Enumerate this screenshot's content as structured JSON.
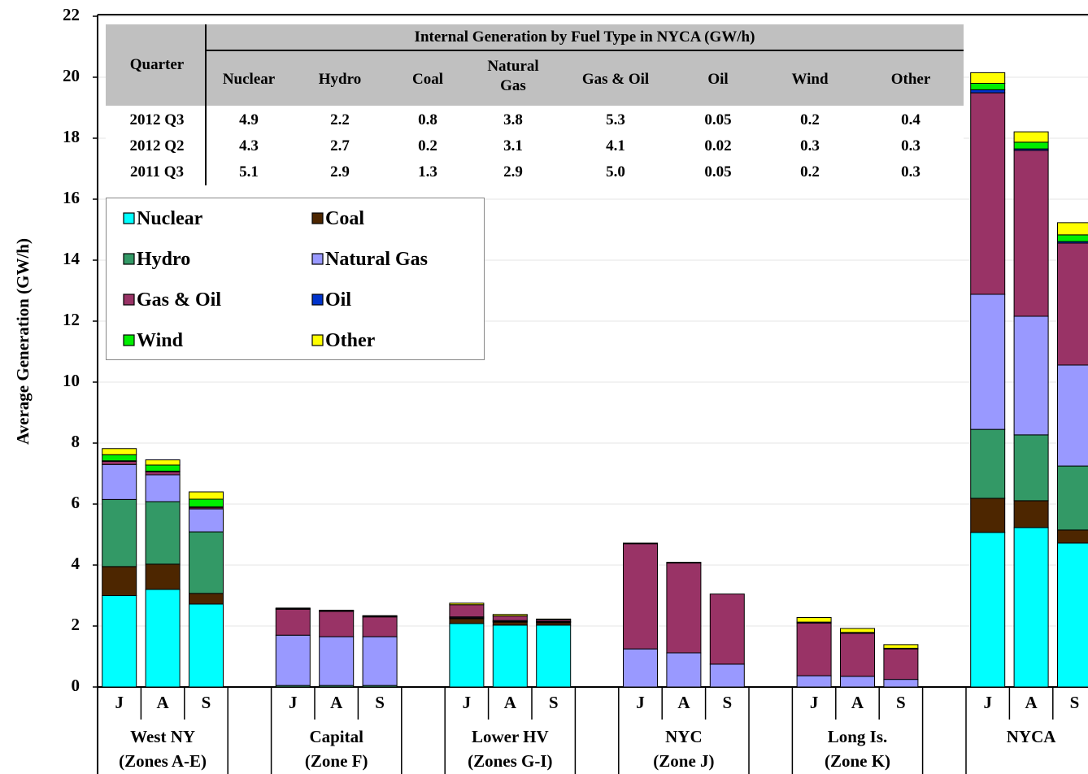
{
  "chart_data": {
    "type": "bar",
    "stacked": true,
    "y_label": "Average Generation (GW/h)",
    "ylim": [
      0,
      22
    ],
    "yticks": [
      0,
      2,
      4,
      6,
      8,
      10,
      12,
      14,
      16,
      18,
      20,
      22
    ],
    "grid": true,
    "categories": [
      "J",
      "A",
      "S",
      "J",
      "A",
      "S",
      "J",
      "A",
      "S",
      "J",
      "A",
      "S",
      "J",
      "A",
      "S",
      "J",
      "A",
      "S"
    ],
    "groups": [
      {
        "name": "West NY",
        "subtitle": "(Zones A-E)"
      },
      {
        "name": "Capital",
        "subtitle": "(Zone F)"
      },
      {
        "name": "Lower HV",
        "subtitle": "(Zones G-I)"
      },
      {
        "name": "NYC",
        "subtitle": "(Zone J)"
      },
      {
        "name": "Long Is.",
        "subtitle": "(Zone K)"
      },
      {
        "name": "NYCA"
      }
    ],
    "legend_position": "upper left",
    "legend_columns": 2,
    "series": [
      {
        "name": "Nuclear",
        "color": "#00ffff",
        "values": [
          3.0,
          3.2,
          2.72,
          0,
          0,
          0,
          2.08,
          2.03,
          2.03,
          0,
          0,
          0,
          0,
          0,
          0,
          5.07,
          5.23,
          4.72
        ]
      },
      {
        "name": "Coal",
        "color": "#4d2600",
        "values": [
          0.95,
          0.83,
          0.35,
          0,
          0,
          0,
          0.16,
          0.1,
          0.08,
          0,
          0,
          0,
          0,
          0,
          0,
          1.12,
          0.88,
          0.43
        ]
      },
      {
        "name": "Hydro",
        "color": "#339966",
        "values": [
          2.2,
          2.05,
          2.02,
          0.05,
          0.05,
          0.05,
          0.03,
          0.02,
          0.02,
          0,
          0,
          0,
          0,
          0,
          0,
          2.26,
          2.16,
          2.1
        ]
      },
      {
        "name": "Natural Gas",
        "color": "#9999ff",
        "values": [
          1.15,
          0.88,
          0.75,
          1.65,
          1.6,
          1.6,
          0.03,
          0.03,
          0.02,
          1.25,
          1.12,
          0.75,
          0.37,
          0.35,
          0.25,
          4.43,
          3.89,
          3.31
        ]
      },
      {
        "name": "Gas & Oil",
        "color": "#993366",
        "values": [
          0.1,
          0.1,
          0.05,
          0.85,
          0.83,
          0.65,
          0.4,
          0.15,
          0.05,
          3.45,
          2.95,
          2.3,
          1.73,
          1.41,
          1.0,
          6.61,
          5.44,
          4.0
        ]
      },
      {
        "name": "Oil",
        "color": "#0033cc",
        "values": [
          0.02,
          0.02,
          0.02,
          0,
          0,
          0,
          0,
          0,
          0,
          0,
          0,
          0,
          0.03,
          0.03,
          0.02,
          0.1,
          0.05,
          0.05
        ]
      },
      {
        "name": "Wind",
        "color": "#00ee00",
        "values": [
          0.2,
          0.2,
          0.25,
          0.02,
          0.02,
          0.02,
          0,
          0,
          0,
          0,
          0,
          0,
          0,
          0,
          0,
          0.21,
          0.22,
          0.22
        ]
      },
      {
        "name": "Other",
        "color": "#ffff00",
        "values": [
          0.2,
          0.17,
          0.24,
          0.02,
          0.02,
          0.02,
          0.05,
          0.05,
          0.03,
          0.02,
          0.02,
          0,
          0.15,
          0.13,
          0.12,
          0.35,
          0.34,
          0.4
        ]
      }
    ]
  },
  "table": {
    "title": "Internal Generation by Fuel Type in NYCA (GW/h)",
    "header": [
      "Quarter",
      "Nuclear",
      "Hydro",
      "Coal",
      "Natural Gas",
      "Gas & Oil",
      "Oil",
      "Wind",
      "Other"
    ],
    "rows": [
      [
        "2012 Q3",
        "4.9",
        "2.2",
        "0.8",
        "3.8",
        "5.3",
        "0.05",
        "0.2",
        "0.4"
      ],
      [
        "2012 Q2",
        "4.3",
        "2.7",
        "0.2",
        "3.1",
        "4.1",
        "0.02",
        "0.3",
        "0.3"
      ],
      [
        "2011 Q3",
        "5.1",
        "2.9",
        "1.3",
        "2.9",
        "5.0",
        "0.05",
        "0.2",
        "0.3"
      ]
    ]
  }
}
